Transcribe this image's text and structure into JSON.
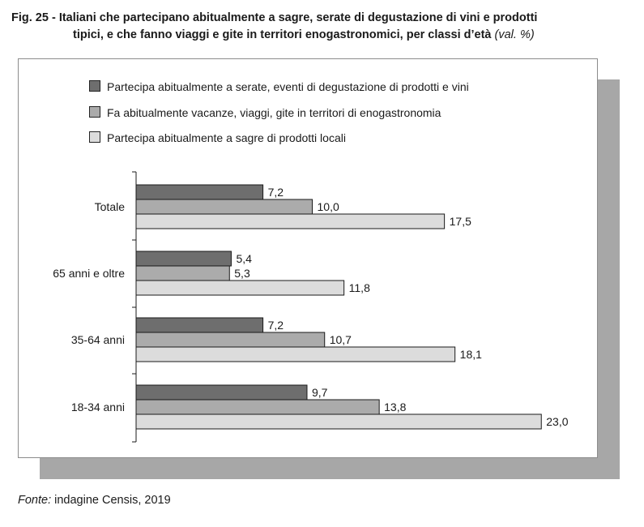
{
  "title": {
    "prefix": "Fig. 25 - ",
    "line1": "Italiani che partecipano abitualmente a sagre, serate di degustazione di vini e prodotti",
    "line2": "tipici, e che fanno viaggi e gite in territori enogastronomici, per classi d’età",
    "unit": "(val. %)"
  },
  "source": {
    "label": "Fonte:",
    "text": "indagine Censis, 2019"
  },
  "chart_data": {
    "type": "bar",
    "orientation": "horizontal",
    "title": "Fig. 25 - Italiani che partecipano abitualmente a sagre, serate di degustazione di vini e prodotti tipici, e che fanno viaggi e gite in territori enogastronomici, per classi d’età (val. %)",
    "categories": [
      "Totale",
      "65 anni e oltre",
      "35-64 anni",
      "18-34 anni"
    ],
    "series": [
      {
        "name": "Partecipa abitualmente a serate, eventi di degustazione di prodotti e vini",
        "color": "#6e6e6e",
        "values": [
          7.2,
          5.4,
          7.2,
          9.7
        ],
        "labels": [
          "7,2",
          "5,4",
          "7,2",
          "9,7"
        ]
      },
      {
        "name": "Fa abitualmente vacanze, viaggi, gite in territori di enogastronomia",
        "color": "#ababab",
        "values": [
          10.0,
          5.3,
          10.7,
          13.8
        ],
        "labels": [
          "10,0",
          "5,3",
          "10,7",
          "13,8"
        ]
      },
      {
        "name": "Partecipa abitualmente a sagre di prodotti locali",
        "color": "#dcdcdc",
        "values": [
          17.5,
          11.8,
          18.1,
          23.0
        ],
        "labels": [
          "17,5",
          "11,8",
          "18,1",
          "23,0"
        ]
      }
    ],
    "xlim": [
      0,
      23.0
    ],
    "legend_position": "top-left",
    "grid": false
  }
}
